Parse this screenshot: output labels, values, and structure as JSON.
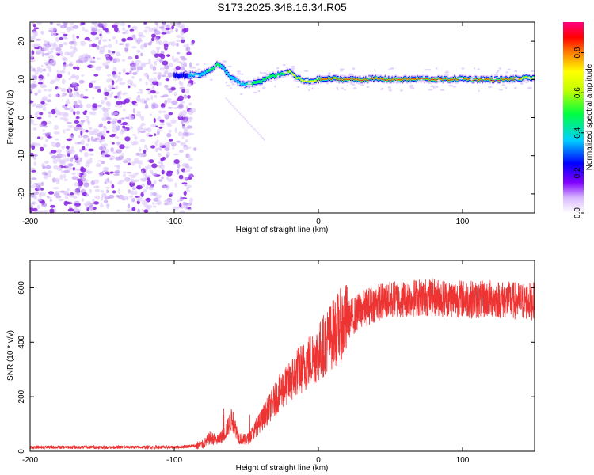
{
  "title": "S173.2025.348.16.34.R05",
  "chart_data": [
    {
      "type": "heatmap",
      "xlabel": "Height of straight line (km)",
      "ylabel": "Frequency (Hz)",
      "xlim": [
        -200,
        150
      ],
      "ylim": [
        -25,
        25
      ],
      "xticks": [
        -200,
        -100,
        0,
        100
      ],
      "yticks": [
        -20,
        -10,
        0,
        10,
        20
      ],
      "noise_region_x": [
        -200,
        -88
      ],
      "signal_ridge": {
        "x": [
          -100,
          -90,
          -80,
          -75,
          -70,
          -66,
          -62,
          -58,
          -55,
          -50,
          -45,
          -40,
          -35,
          -30,
          -25,
          -20,
          -15,
          -10,
          -5,
          0,
          10,
          20,
          30,
          40,
          50,
          60,
          70,
          80,
          90,
          100,
          110,
          120,
          130,
          140,
          150
        ],
        "freq": [
          11,
          11,
          11.5,
          12.5,
          14,
          13,
          11,
          10,
          9,
          8.5,
          9,
          9.5,
          10.5,
          11,
          11.5,
          12,
          10.5,
          9.5,
          9.5,
          10,
          10.2,
          10,
          10,
          10.2,
          10,
          10,
          10.1,
          10,
          10,
          10.2,
          10,
          10,
          10,
          10.2,
          10.5
        ],
        "amplitude": [
          0.3,
          0.4,
          0.5,
          0.6,
          0.6,
          0.5,
          0.45,
          0.45,
          0.5,
          0.55,
          0.6,
          0.6,
          0.65,
          0.7,
          0.7,
          0.75,
          0.8,
          0.85,
          0.85,
          0.9,
          0.92,
          0.95,
          0.95,
          0.95,
          0.95,
          0.95,
          0.95,
          0.95,
          0.95,
          0.95,
          0.95,
          0.95,
          0.9,
          0.9,
          0.85
        ]
      },
      "colorbar": {
        "label": "Normalized spectral amplitude",
        "range": [
          0,
          1
        ],
        "ticks": [
          "0.0",
          "0.2",
          "0.4",
          "0.6",
          "0.8"
        ]
      }
    },
    {
      "type": "line",
      "xlabel": "Height of straight line (km)",
      "ylabel": "SNR (10 * v/v)",
      "xlim": [
        -200,
        150
      ],
      "ylim": [
        0,
        700
      ],
      "xticks": [
        -200,
        -100,
        0,
        100
      ],
      "yticks": [
        0,
        200,
        400,
        600
      ],
      "color": "#ee3333",
      "series": [
        {
          "name": "SNR",
          "x": [
            -200,
            -150,
            -100,
            -85,
            -80,
            -75,
            -70,
            -65,
            -60,
            -55,
            -50,
            -45,
            -40,
            -35,
            -30,
            -25,
            -20,
            -15,
            -10,
            -5,
            0,
            5,
            10,
            15,
            20,
            25,
            30,
            40,
            50,
            60,
            70,
            80,
            90,
            100,
            110,
            120,
            130,
            140,
            150
          ],
          "y": [
            15,
            15,
            15,
            20,
            25,
            50,
            40,
            65,
            120,
            50,
            40,
            70,
            110,
            150,
            190,
            230,
            250,
            290,
            310,
            340,
            360,
            400,
            430,
            460,
            480,
            500,
            520,
            545,
            555,
            560,
            565,
            565,
            560,
            560,
            555,
            560,
            555,
            550,
            550
          ]
        }
      ]
    }
  ]
}
